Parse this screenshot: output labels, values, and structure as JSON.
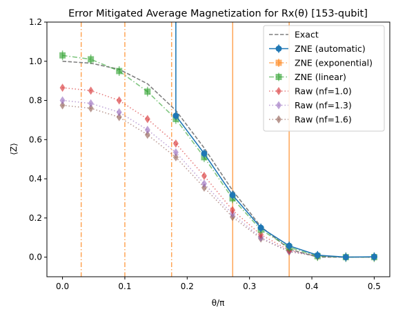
{
  "chart_data": {
    "type": "line",
    "title": "Error Mitigated Average Magnetization for Rx(θ) [153-qubit]",
    "xlabel": "θ/π",
    "ylabel": "⟨Z⟩",
    "xlim": [
      -0.025,
      0.525
    ],
    "ylim": [
      -0.1,
      1.2
    ],
    "x_ticks": [
      "0.0",
      "0.1",
      "0.2",
      "0.3",
      "0.4",
      "0.5"
    ],
    "x_tick_values": [
      0.0,
      0.1,
      0.2,
      0.3,
      0.4,
      0.5
    ],
    "y_ticks": [
      "0.0",
      "0.2",
      "0.4",
      "0.6",
      "0.8",
      "1.0",
      "1.2"
    ],
    "y_tick_values": [
      0.0,
      0.2,
      0.4,
      0.6,
      0.8,
      1.0,
      1.2
    ],
    "grid": false,
    "legend_position": "top-right",
    "x": [
      0.0,
      0.04545,
      0.09091,
      0.13636,
      0.18182,
      0.22727,
      0.27273,
      0.31818,
      0.36364,
      0.40909,
      0.45455,
      0.5
    ],
    "series": [
      {
        "name": "Exact",
        "style": "dashed",
        "color": "#7f7f7f",
        "values": [
          1.0,
          0.99,
          0.959,
          0.885,
          0.749,
          0.557,
          0.341,
          0.156,
          0.041,
          0.0,
          0.0,
          0.0
        ]
      },
      {
        "name": "ZNE (automatic)",
        "style": "solid-circle",
        "color": "#1f77b4",
        "values": [
          null,
          null,
          null,
          null,
          0.722,
          0.529,
          0.317,
          0.15,
          0.058,
          0.01,
          0.0,
          0.002
        ],
        "spike_x": 0.18182
      },
      {
        "name": "ZNE (exponential)",
        "style": "dashdot-square",
        "color": "#ff7f0e",
        "values": [
          null,
          null,
          null,
          null,
          null,
          null,
          null,
          null,
          null,
          null,
          null,
          null
        ],
        "vertical_lines_dashdot": [
          0.03,
          0.1,
          0.175
        ],
        "vertical_lines_solid": [
          0.273,
          0.3636
        ]
      },
      {
        "name": "ZNE (linear)",
        "style": "dashdot-square",
        "color": "#2ca02c",
        "values": [
          1.03,
          1.01,
          0.95,
          0.845,
          0.705,
          0.51,
          0.3,
          0.14,
          0.05,
          0.005,
          0.0,
          0.0
        ]
      },
      {
        "name": "Raw (nf=1.0)",
        "style": "dotted-diamond",
        "color": "#d62728",
        "values": [
          0.865,
          0.85,
          0.8,
          0.705,
          0.58,
          0.415,
          0.24,
          0.115,
          0.035,
          0.005,
          0.0,
          0.0
        ]
      },
      {
        "name": "Raw (nf=1.3)",
        "style": "dotted-diamond",
        "color": "#9467bd",
        "values": [
          0.8,
          0.785,
          0.74,
          0.65,
          0.535,
          0.375,
          0.22,
          0.1,
          0.03,
          0.005,
          0.0,
          0.0
        ]
      },
      {
        "name": "Raw (nf=1.6)",
        "style": "dotted-diamond",
        "color": "#8c564b",
        "values": [
          0.775,
          0.76,
          0.715,
          0.625,
          0.51,
          0.355,
          0.205,
          0.095,
          0.028,
          0.005,
          0.0,
          0.0
        ]
      }
    ]
  }
}
